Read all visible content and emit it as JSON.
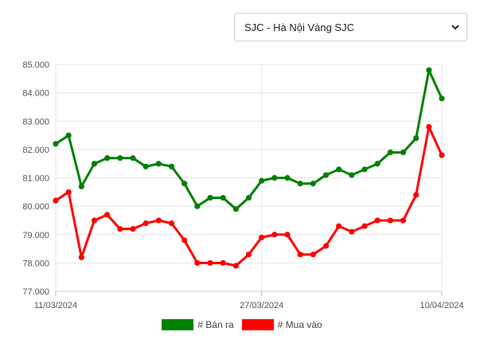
{
  "dropdown": {
    "selected": "SJC - Hà Nội Vàng SJC",
    "caret_icon": "chevron-down-icon"
  },
  "chart_data": {
    "type": "line",
    "y_tick_labels": [
      "77.000",
      "78.000",
      "79.000",
      "80.000",
      "81.000",
      "82.000",
      "83.000",
      "84.000",
      "85.000"
    ],
    "x_tick_labels": [
      "11/03/2024",
      "27/03/2024",
      "10/04/2024"
    ],
    "ylim": [
      77000,
      85000
    ],
    "grid": true,
    "legend_position": "bottom",
    "series": [
      {
        "name": "# Bán ra",
        "color": "#008000",
        "values": [
          82200,
          82500,
          80700,
          81500,
          81700,
          81700,
          81700,
          81400,
          81500,
          81400,
          80800,
          80000,
          80300,
          80300,
          79900,
          80300,
          80900,
          81000,
          81000,
          80800,
          80800,
          81100,
          81300,
          81100,
          81300,
          81500,
          81900,
          81900,
          82400,
          84800,
          83800
        ]
      },
      {
        "name": "# Mua vào",
        "color": "#ff0000",
        "values": [
          80200,
          80500,
          78200,
          79500,
          79700,
          79200,
          79200,
          79400,
          79500,
          79400,
          78800,
          78000,
          78000,
          78000,
          77900,
          78300,
          78900,
          79000,
          79000,
          78300,
          78300,
          78600,
          79300,
          79100,
          79300,
          79500,
          79500,
          79500,
          80400,
          82800,
          81800
        ]
      }
    ]
  }
}
